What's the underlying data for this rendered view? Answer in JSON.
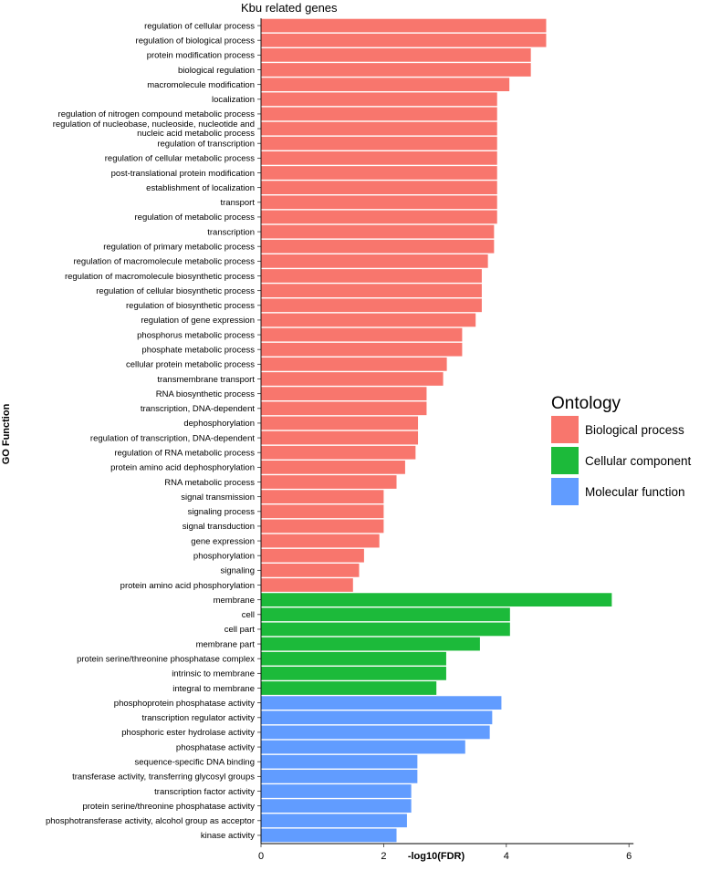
{
  "chart_data": {
    "type": "bar",
    "orientation": "horizontal",
    "title": "Kbu related genes",
    "xlabel": "-log10(FDR)",
    "ylabel": "GO Function",
    "xlim": [
      0,
      6
    ],
    "xticks": [
      0,
      2,
      4,
      6
    ],
    "grid": false,
    "legend": {
      "title": "Ontology",
      "placement": "right",
      "entries": [
        {
          "name": "Biological process",
          "color": "#F8766D"
        },
        {
          "name": "Cellular component",
          "color": "#1CBA3A"
        },
        {
          "name": "Molecular function",
          "color": "#619CFF"
        }
      ]
    },
    "bars": [
      {
        "label": "regulation of cellular process",
        "value": 4.65,
        "group": "Biological process"
      },
      {
        "label": "regulation of biological process",
        "value": 4.65,
        "group": "Biological process"
      },
      {
        "label": "protein modification process",
        "value": 4.4,
        "group": "Biological process"
      },
      {
        "label": "biological regulation",
        "value": 4.4,
        "group": "Biological process"
      },
      {
        "label": "macromolecule modification",
        "value": 4.05,
        "group": "Biological process"
      },
      {
        "label": "localization",
        "value": 3.85,
        "group": "Biological process"
      },
      {
        "label": "regulation of nitrogen compound metabolic process",
        "value": 3.85,
        "group": "Biological process"
      },
      {
        "label": "regulation of nucleobase, nucleoside, nucleotide and nucleic acid metabolic process",
        "value": 3.85,
        "group": "Biological process"
      },
      {
        "label": "regulation of transcription",
        "value": 3.85,
        "group": "Biological process"
      },
      {
        "label": "regulation of cellular metabolic process",
        "value": 3.85,
        "group": "Biological process"
      },
      {
        "label": "post-translational protein modification",
        "value": 3.85,
        "group": "Biological process"
      },
      {
        "label": "establishment of localization",
        "value": 3.85,
        "group": "Biological process"
      },
      {
        "label": "transport",
        "value": 3.85,
        "group": "Biological process"
      },
      {
        "label": "regulation of metabolic process",
        "value": 3.85,
        "group": "Biological process"
      },
      {
        "label": "transcription",
        "value": 3.8,
        "group": "Biological process"
      },
      {
        "label": "regulation of primary metabolic process",
        "value": 3.8,
        "group": "Biological process"
      },
      {
        "label": "regulation of macromolecule metabolic process",
        "value": 3.7,
        "group": "Biological process"
      },
      {
        "label": "regulation of macromolecule biosynthetic process",
        "value": 3.6,
        "group": "Biological process"
      },
      {
        "label": "regulation of cellular biosynthetic process",
        "value": 3.6,
        "group": "Biological process"
      },
      {
        "label": "regulation of biosynthetic process",
        "value": 3.6,
        "group": "Biological process"
      },
      {
        "label": "regulation of gene expression",
        "value": 3.5,
        "group": "Biological process"
      },
      {
        "label": "phosphorus metabolic process",
        "value": 3.28,
        "group": "Biological process"
      },
      {
        "label": "phosphate metabolic process",
        "value": 3.28,
        "group": "Biological process"
      },
      {
        "label": "cellular protein metabolic process",
        "value": 3.03,
        "group": "Biological process"
      },
      {
        "label": "transmembrane transport",
        "value": 2.97,
        "group": "Biological process"
      },
      {
        "label": "RNA biosynthetic process",
        "value": 2.7,
        "group": "Biological process"
      },
      {
        "label": "transcription, DNA-dependent",
        "value": 2.7,
        "group": "Biological process"
      },
      {
        "label": "dephosphorylation",
        "value": 2.56,
        "group": "Biological process"
      },
      {
        "label": "regulation of transcription, DNA-dependent",
        "value": 2.56,
        "group": "Biological process"
      },
      {
        "label": "regulation of RNA metabolic process",
        "value": 2.52,
        "group": "Biological process"
      },
      {
        "label": "protein amino acid dephosphorylation",
        "value": 2.35,
        "group": "Biological process"
      },
      {
        "label": "RNA metabolic process",
        "value": 2.21,
        "group": "Biological process"
      },
      {
        "label": "signal transmission",
        "value": 2.0,
        "group": "Biological process"
      },
      {
        "label": "signaling process",
        "value": 2.0,
        "group": "Biological process"
      },
      {
        "label": "signal transduction",
        "value": 2.0,
        "group": "Biological process"
      },
      {
        "label": "gene expression",
        "value": 1.93,
        "group": "Biological process"
      },
      {
        "label": "phosphorylation",
        "value": 1.68,
        "group": "Biological process"
      },
      {
        "label": "signaling",
        "value": 1.6,
        "group": "Biological process"
      },
      {
        "label": "protein amino acid phosphorylation",
        "value": 1.5,
        "group": "Biological process"
      },
      {
        "label": "membrane",
        "value": 5.72,
        "group": "Cellular component"
      },
      {
        "label": "cell",
        "value": 4.06,
        "group": "Cellular component"
      },
      {
        "label": "cell part",
        "value": 4.06,
        "group": "Cellular component"
      },
      {
        "label": "membrane part",
        "value": 3.57,
        "group": "Cellular component"
      },
      {
        "label": "protein serine/threonine phosphatase complex",
        "value": 3.02,
        "group": "Cellular component"
      },
      {
        "label": "intrinsic to membrane",
        "value": 3.02,
        "group": "Cellular component"
      },
      {
        "label": "integral to membrane",
        "value": 2.86,
        "group": "Cellular component"
      },
      {
        "label": "phosphoprotein phosphatase activity",
        "value": 3.92,
        "group": "Molecular function"
      },
      {
        "label": "transcription regulator activity",
        "value": 3.77,
        "group": "Molecular function"
      },
      {
        "label": "phosphoric ester hydrolase activity",
        "value": 3.73,
        "group": "Molecular function"
      },
      {
        "label": "phosphatase activity",
        "value": 3.33,
        "group": "Molecular function"
      },
      {
        "label": "sequence-specific DNA binding",
        "value": 2.55,
        "group": "Molecular function"
      },
      {
        "label": "transferase activity, transferring glycosyl groups",
        "value": 2.55,
        "group": "Molecular function"
      },
      {
        "label": "transcription factor activity",
        "value": 2.45,
        "group": "Molecular function"
      },
      {
        "label": "protein serine/threonine phosphatase activity",
        "value": 2.45,
        "group": "Molecular function"
      },
      {
        "label": "phosphotransferase activity, alcohol group as acceptor",
        "value": 2.38,
        "group": "Molecular function"
      },
      {
        "label": "kinase activity",
        "value": 2.21,
        "group": "Molecular function"
      }
    ]
  }
}
